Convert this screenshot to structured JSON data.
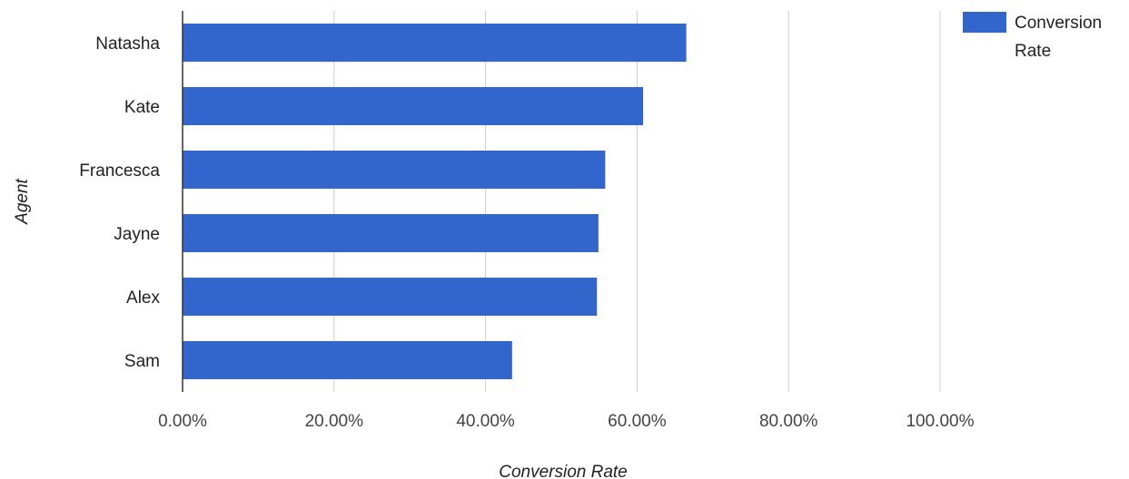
{
  "chart_data": {
    "type": "bar",
    "orientation": "horizontal",
    "categories": [
      "Natasha",
      "Kate",
      "Francesca",
      "Jayne",
      "Alex",
      "Sam"
    ],
    "series": [
      {
        "name": "Conversion Rate",
        "color": "#3366cc",
        "values": [
          66.5,
          60.8,
          55.8,
          54.9,
          54.7,
          43.5
        ]
      }
    ],
    "xlabel": "Conversion Rate",
    "ylabel": "Agent",
    "xlim": [
      0,
      100
    ],
    "x_ticks": [
      0,
      20,
      40,
      60,
      80,
      100
    ],
    "x_tick_labels": [
      "0.00%",
      "20.00%",
      "40.00%",
      "60.00%",
      "80.00%",
      "100.00%"
    ],
    "grid": true,
    "legend": {
      "position": "top-right",
      "lines": [
        "Conversion",
        "Rate"
      ]
    }
  }
}
